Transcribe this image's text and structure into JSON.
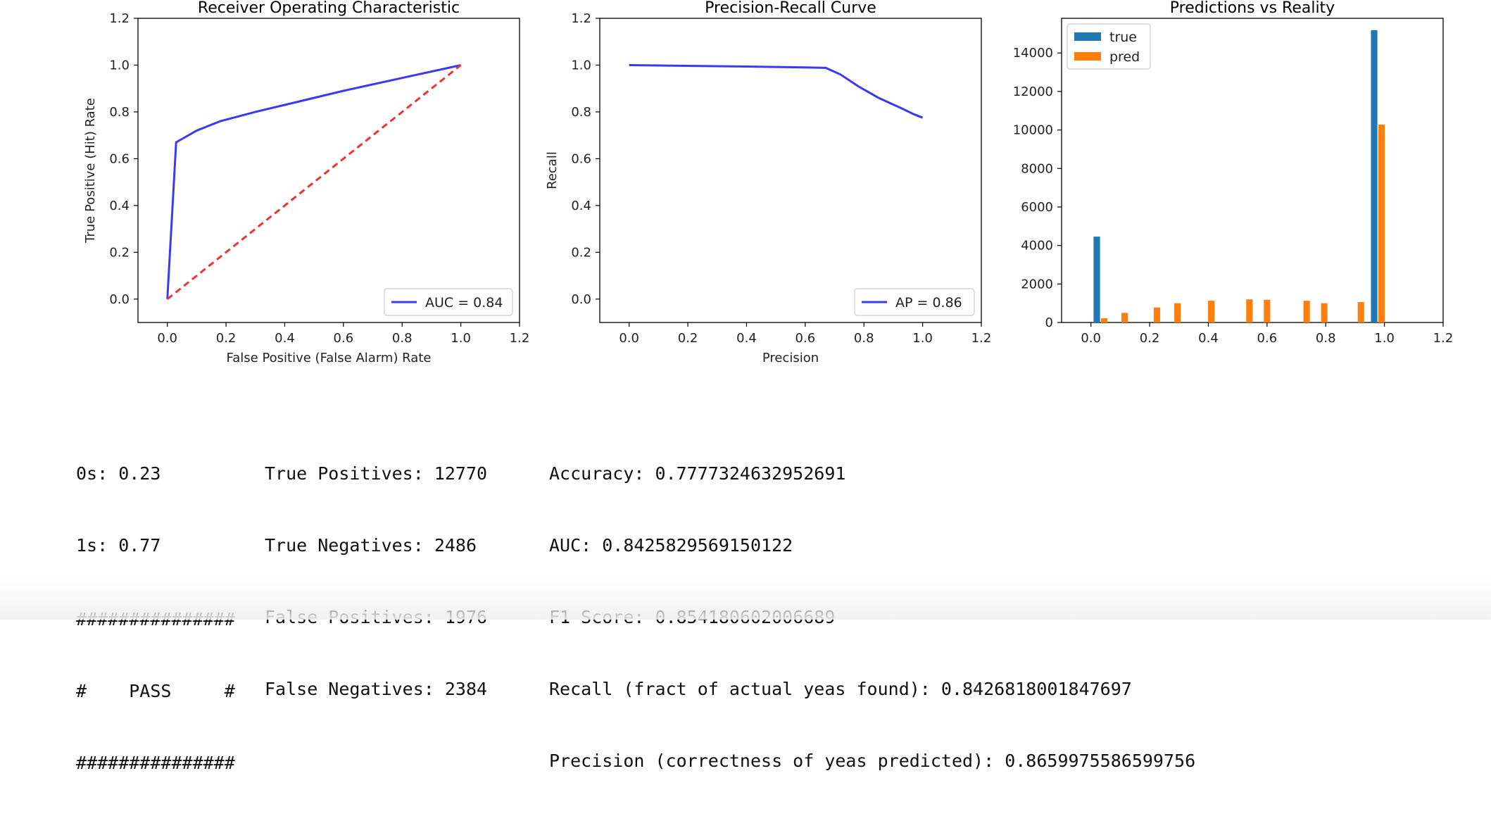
{
  "chart_data": [
    {
      "type": "line",
      "title": "Receiver Operating Characteristic",
      "xlabel": "False Positive (False Alarm) Rate",
      "ylabel": "True Positive (Hit) Rate",
      "xlim": [
        -0.1,
        1.2
      ],
      "ylim": [
        -0.1,
        1.2
      ],
      "xticks": [
        "0.0",
        "0.2",
        "0.4",
        "0.6",
        "0.8",
        "1.0",
        "1.2"
      ],
      "yticks": [
        "0.0",
        "0.2",
        "0.4",
        "0.6",
        "0.8",
        "1.0",
        "1.2"
      ],
      "legend_position": "lower-right",
      "series": [
        {
          "name": "AUC = 0.84",
          "color": "#3a3af5",
          "style": "solid",
          "x": [
            0.0,
            0.03,
            0.1,
            0.18,
            0.3,
            0.45,
            0.6,
            0.8,
            1.0
          ],
          "y": [
            0.0,
            0.67,
            0.72,
            0.76,
            0.8,
            0.845,
            0.89,
            0.945,
            1.0
          ]
        },
        {
          "name": "",
          "color": "#ee3333",
          "style": "dashed",
          "x": [
            0.0,
            1.0
          ],
          "y": [
            0.0,
            1.0
          ]
        }
      ]
    },
    {
      "type": "line",
      "title": "Precision-Recall Curve",
      "xlabel": "Precision",
      "ylabel": "Recall",
      "xlim": [
        -0.1,
        1.2
      ],
      "ylim": [
        -0.1,
        1.2
      ],
      "xticks": [
        "0.0",
        "0.2",
        "0.4",
        "0.6",
        "0.8",
        "1.0",
        "1.2"
      ],
      "yticks": [
        "0.0",
        "0.2",
        "0.4",
        "0.6",
        "0.8",
        "1.0",
        "1.2"
      ],
      "legend_position": "lower-right",
      "series": [
        {
          "name": "AP = 0.86",
          "color": "#3a3af5",
          "style": "solid",
          "x": [
            0.0,
            0.2,
            0.4,
            0.6,
            0.67,
            0.72,
            0.78,
            0.85,
            0.92,
            0.97,
            1.0
          ],
          "y": [
            1.0,
            0.997,
            0.994,
            0.99,
            0.988,
            0.96,
            0.91,
            0.86,
            0.82,
            0.79,
            0.775
          ]
        }
      ]
    },
    {
      "type": "bar",
      "title": "Predictions vs Reality",
      "xlim": [
        -0.1,
        1.2
      ],
      "ylim": [
        0,
        15800
      ],
      "xticks": [
        "0.0",
        "0.2",
        "0.4",
        "0.6",
        "0.8",
        "1.0",
        "1.2"
      ],
      "yticks": [
        "0",
        "2000",
        "4000",
        "6000",
        "8000",
        "10000",
        "12000",
        "14000"
      ],
      "legend_position": "upper-left",
      "series": [
        {
          "name": "true",
          "color": "#1f77b4",
          "x": [
            0.02,
            0.965
          ],
          "values": [
            4460,
            15180
          ]
        },
        {
          "name": "pred",
          "color": "#ff7f0e",
          "x": [
            0.045,
            0.115,
            0.225,
            0.295,
            0.41,
            0.54,
            0.6,
            0.735,
            0.795,
            0.92,
            0.99
          ],
          "values": [
            220,
            500,
            780,
            1000,
            1130,
            1200,
            1180,
            1130,
            1000,
            1060,
            10280
          ]
        }
      ]
    }
  ],
  "output": {
    "class_ratios": [
      "0s: 0.23",
      "1s: 0.77"
    ],
    "confusion": [
      "True Positives: 12770",
      "True Negatives: 2486",
      "False Positives: 1976",
      "False Negatives: 2384"
    ],
    "metrics": [
      "Accuracy: 0.7777324632952691",
      "AUC: 0.8425829569150122",
      "F1 Score: 0.854180602006689",
      "Recall (fract of actual yeas found): 0.8426818001847697",
      "Precision (correctness of yeas predicted): 0.8659975586599756"
    ],
    "pass_banner": [
      "###############",
      "#    PASS     #",
      "###############"
    ]
  }
}
